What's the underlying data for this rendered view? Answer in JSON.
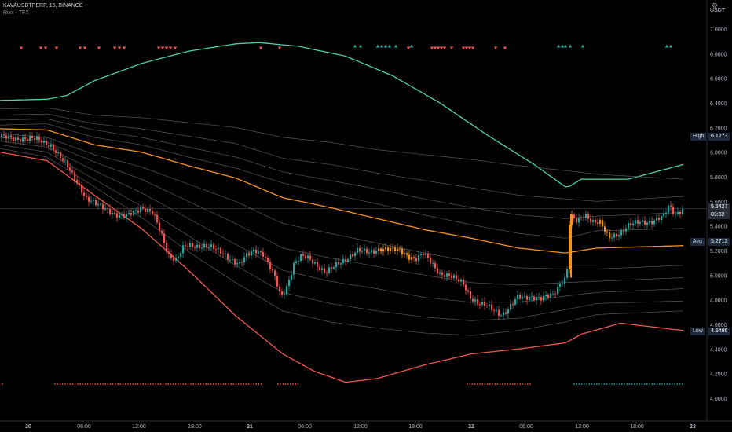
{
  "header": {
    "symbol_line": "KAVAUSDTPERP, 15, BINANCE",
    "indicator_line": "Rixx - TFX",
    "currency": "USDT"
  },
  "labels": {
    "high_name": "High",
    "high_value": "6.1273",
    "avg_name": "Avg",
    "avg_value": "5.2713",
    "low_name": "Low",
    "low_value": "4.5486",
    "last_value": "5.5427",
    "countdown": "03:02"
  },
  "colors": {
    "background": "#000000",
    "up": "#26a69a",
    "down": "#ef5350",
    "orange": "#f7931a",
    "band": "#5d606b",
    "teal": "#4dd0b0",
    "red_band": "#f05650"
  },
  "chart_data": {
    "type": "candlestick",
    "title": "KAVAUSDTPERP, 15, BINANCE",
    "x_ticks": [
      "20",
      "06:00",
      "12:00",
      "18:00",
      "21",
      "06:00",
      "12:00",
      "18:00",
      "22",
      "06:00",
      "12:00",
      "18:00",
      "23"
    ],
    "y_ticks": [
      "7.0000",
      "6.8000",
      "6.6000",
      "6.4000",
      "6.2000",
      "6.0000",
      "5.8000",
      "5.6000",
      "5.4000",
      "5.2000",
      "5.0000",
      "4.8000",
      "4.6000",
      "4.4000",
      "4.2000",
      "4.0000"
    ],
    "ylim": [
      3.9,
      7.1
    ],
    "price_path": [
      [
        0,
        6.12
      ],
      [
        30,
        6.11
      ],
      [
        50,
        6.1
      ],
      [
        65,
        6.06
      ],
      [
        75,
        5.97
      ],
      [
        90,
        5.85
      ],
      [
        100,
        5.75
      ],
      [
        110,
        5.62
      ],
      [
        120,
        5.58
      ],
      [
        135,
        5.55
      ],
      [
        150,
        5.48
      ],
      [
        160,
        5.47
      ],
      [
        170,
        5.52
      ],
      [
        180,
        5.55
      ],
      [
        195,
        5.5
      ],
      [
        205,
        5.35
      ],
      [
        215,
        5.17
      ],
      [
        225,
        5.12
      ],
      [
        235,
        5.23
      ],
      [
        245,
        5.24
      ],
      [
        260,
        5.24
      ],
      [
        270,
        5.22
      ],
      [
        285,
        5.18
      ],
      [
        295,
        5.13
      ],
      [
        305,
        5.08
      ],
      [
        315,
        5.16
      ],
      [
        325,
        5.21
      ],
      [
        335,
        5.18
      ],
      [
        345,
        5.05
      ],
      [
        352,
        4.95
      ],
      [
        358,
        4.82
      ],
      [
        365,
        4.9
      ],
      [
        375,
        5.1
      ],
      [
        385,
        5.15
      ],
      [
        395,
        5.13
      ],
      [
        405,
        5.08
      ],
      [
        415,
        5.02
      ],
      [
        425,
        5.06
      ],
      [
        440,
        5.13
      ],
      [
        455,
        5.2
      ],
      [
        470,
        5.18
      ],
      [
        485,
        5.22
      ],
      [
        500,
        5.2
      ],
      [
        510,
        5.2
      ],
      [
        520,
        5.16
      ],
      [
        530,
        5.13
      ],
      [
        540,
        5.17
      ],
      [
        550,
        5.1
      ],
      [
        560,
        5.02
      ],
      [
        575,
        4.98
      ],
      [
        590,
        4.94
      ],
      [
        600,
        4.82
      ],
      [
        610,
        4.76
      ],
      [
        620,
        4.75
      ],
      [
        630,
        4.72
      ],
      [
        640,
        4.68
      ],
      [
        648,
        4.72
      ],
      [
        660,
        4.82
      ],
      [
        675,
        4.83
      ],
      [
        690,
        4.8
      ],
      [
        705,
        4.85
      ],
      [
        715,
        4.95
      ],
      [
        722,
        4.98
      ],
      [
        726,
        5.48
      ],
      [
        735,
        5.43
      ],
      [
        745,
        5.5
      ],
      [
        755,
        5.44
      ],
      [
        765,
        5.42
      ],
      [
        775,
        5.3
      ],
      [
        790,
        5.35
      ],
      [
        800,
        5.4
      ],
      [
        815,
        5.43
      ],
      [
        830,
        5.44
      ],
      [
        845,
        5.47
      ],
      [
        852,
        5.56
      ],
      [
        860,
        5.5
      ],
      [
        870,
        5.54
      ]
    ],
    "series": [
      {
        "name": "",
        "color": "#4dd0b0",
        "points": [
          [
            0,
            6.42
          ],
          [
            60,
            6.43
          ],
          [
            85,
            6.46
          ],
          [
            120,
            6.58
          ],
          [
            180,
            6.72
          ],
          [
            240,
            6.82
          ],
          [
            300,
            6.88
          ],
          [
            330,
            6.89
          ],
          [
            380,
            6.86
          ],
          [
            440,
            6.78
          ],
          [
            500,
            6.62
          ],
          [
            560,
            6.4
          ],
          [
            620,
            6.14
          ],
          [
            680,
            5.9
          ],
          [
            715,
            5.74
          ],
          [
            722,
            5.71
          ],
          [
            740,
            5.78
          ],
          [
            800,
            5.78
          ],
          [
            870,
            5.9
          ]
        ]
      },
      {
        "name": "",
        "color": "#5d606b",
        "points": [
          [
            0,
            6.35
          ],
          [
            60,
            6.36
          ],
          [
            120,
            6.3
          ],
          [
            180,
            6.28
          ],
          [
            240,
            6.24
          ],
          [
            300,
            6.2
          ],
          [
            360,
            6.12
          ],
          [
            420,
            6.08
          ],
          [
            480,
            6.02
          ],
          [
            540,
            5.98
          ],
          [
            600,
            5.94
          ],
          [
            660,
            5.89
          ],
          [
            720,
            5.85
          ],
          [
            760,
            5.82
          ],
          [
            870,
            5.78
          ]
        ]
      },
      {
        "name": "",
        "color": "#5d606b",
        "points": [
          [
            0,
            6.3
          ],
          [
            60,
            6.31
          ],
          [
            120,
            6.23
          ],
          [
            180,
            6.19
          ],
          [
            240,
            6.13
          ],
          [
            300,
            6.07
          ],
          [
            360,
            5.95
          ],
          [
            420,
            5.9
          ],
          [
            480,
            5.83
          ],
          [
            540,
            5.77
          ],
          [
            600,
            5.71
          ],
          [
            660,
            5.65
          ],
          [
            720,
            5.62
          ],
          [
            760,
            5.6
          ],
          [
            870,
            5.64
          ]
        ]
      },
      {
        "name": "",
        "color": "#5d606b",
        "points": [
          [
            0,
            6.26
          ],
          [
            60,
            6.27
          ],
          [
            120,
            6.18
          ],
          [
            180,
            6.12
          ],
          [
            240,
            6.04
          ],
          [
            300,
            5.96
          ],
          [
            360,
            5.84
          ],
          [
            420,
            5.77
          ],
          [
            480,
            5.7
          ],
          [
            540,
            5.62
          ],
          [
            600,
            5.55
          ],
          [
            660,
            5.49
          ],
          [
            720,
            5.46
          ],
          [
            760,
            5.48
          ],
          [
            870,
            5.51
          ]
        ]
      },
      {
        "name": "",
        "color": "#5d606b",
        "points": [
          [
            0,
            6.22
          ],
          [
            60,
            6.23
          ],
          [
            120,
            6.12
          ],
          [
            180,
            6.06
          ],
          [
            240,
            5.96
          ],
          [
            300,
            5.87
          ],
          [
            360,
            5.75
          ],
          [
            420,
            5.66
          ],
          [
            480,
            5.58
          ],
          [
            540,
            5.49
          ],
          [
            600,
            5.41
          ],
          [
            660,
            5.34
          ],
          [
            720,
            5.3
          ],
          [
            760,
            5.36
          ],
          [
            870,
            5.38
          ]
        ]
      },
      {
        "name": "Avg",
        "color": "#f7931a",
        "points": [
          [
            0,
            6.19
          ],
          [
            60,
            6.18
          ],
          [
            120,
            6.06
          ],
          [
            180,
            6.0
          ],
          [
            240,
            5.89
          ],
          [
            300,
            5.79
          ],
          [
            360,
            5.63
          ],
          [
            420,
            5.55
          ],
          [
            480,
            5.46
          ],
          [
            540,
            5.37
          ],
          [
            600,
            5.3
          ],
          [
            660,
            5.22
          ],
          [
            720,
            5.18
          ],
          [
            760,
            5.22
          ],
          [
            870,
            5.24
          ]
        ]
      },
      {
        "name": "",
        "color": "#5d606b",
        "points": [
          [
            0,
            6.15
          ],
          [
            60,
            6.12
          ],
          [
            120,
            5.98
          ],
          [
            180,
            5.88
          ],
          [
            240,
            5.74
          ],
          [
            300,
            5.6
          ],
          [
            360,
            5.42
          ],
          [
            420,
            5.34
          ],
          [
            480,
            5.26
          ],
          [
            540,
            5.18
          ],
          [
            600,
            5.11
          ],
          [
            660,
            5.06
          ],
          [
            720,
            5.05
          ],
          [
            760,
            5.05
          ],
          [
            870,
            5.08
          ]
        ]
      },
      {
        "name": "",
        "color": "#5d606b",
        "points": [
          [
            0,
            6.12
          ],
          [
            60,
            6.08
          ],
          [
            120,
            5.92
          ],
          [
            180,
            5.78
          ],
          [
            240,
            5.6
          ],
          [
            300,
            5.42
          ],
          [
            360,
            5.22
          ],
          [
            420,
            5.14
          ],
          [
            480,
            5.07
          ],
          [
            540,
            5.0
          ],
          [
            600,
            4.94
          ],
          [
            660,
            4.92
          ],
          [
            720,
            4.94
          ],
          [
            760,
            4.95
          ],
          [
            870,
            4.98
          ]
        ]
      },
      {
        "name": "",
        "color": "#5d606b",
        "points": [
          [
            0,
            6.09
          ],
          [
            60,
            6.04
          ],
          [
            120,
            5.85
          ],
          [
            180,
            5.67
          ],
          [
            240,
            5.46
          ],
          [
            300,
            5.25
          ],
          [
            360,
            5.04
          ],
          [
            420,
            4.95
          ],
          [
            480,
            4.89
          ],
          [
            540,
            4.82
          ],
          [
            600,
            4.78
          ],
          [
            660,
            4.78
          ],
          [
            720,
            4.83
          ],
          [
            760,
            4.86
          ],
          [
            870,
            4.89
          ]
        ]
      },
      {
        "name": "",
        "color": "#5d606b",
        "points": [
          [
            0,
            6.06
          ],
          [
            60,
            6.0
          ],
          [
            120,
            5.78
          ],
          [
            180,
            5.56
          ],
          [
            240,
            5.32
          ],
          [
            300,
            5.08
          ],
          [
            360,
            4.86
          ],
          [
            420,
            4.77
          ],
          [
            480,
            4.71
          ],
          [
            540,
            4.66
          ],
          [
            600,
            4.63
          ],
          [
            660,
            4.65
          ],
          [
            720,
            4.72
          ],
          [
            760,
            4.77
          ],
          [
            870,
            4.79
          ]
        ]
      },
      {
        "name": "",
        "color": "#5d606b",
        "points": [
          [
            0,
            6.03
          ],
          [
            60,
            5.96
          ],
          [
            120,
            5.72
          ],
          [
            180,
            5.47
          ],
          [
            240,
            5.19
          ],
          [
            300,
            4.94
          ],
          [
            360,
            4.71
          ],
          [
            420,
            4.62
          ],
          [
            480,
            4.57
          ],
          [
            540,
            4.53
          ],
          [
            600,
            4.51
          ],
          [
            660,
            4.55
          ],
          [
            720,
            4.62
          ],
          [
            760,
            4.68
          ],
          [
            870,
            4.71
          ]
        ]
      },
      {
        "name": "",
        "color": "#f05650",
        "points": [
          [
            0,
            6.0
          ],
          [
            60,
            5.93
          ],
          [
            120,
            5.65
          ],
          [
            180,
            5.38
          ],
          [
            240,
            5.04
          ],
          [
            300,
            4.67
          ],
          [
            360,
            4.36
          ],
          [
            400,
            4.22
          ],
          [
            440,
            4.13
          ],
          [
            480,
            4.16
          ],
          [
            540,
            4.27
          ],
          [
            600,
            4.36
          ],
          [
            660,
            4.4
          ],
          [
            720,
            4.45
          ],
          [
            740,
            4.52
          ],
          [
            790,
            4.61
          ],
          [
            870,
            4.55
          ]
        ]
      }
    ],
    "buy_markers_x": [
      452,
      459,
      481,
      486,
      491,
      496,
      504,
      524,
      711,
      716,
      720,
      726,
      742,
      849,
      854
    ],
    "sell_markers_x": [
      27,
      52,
      58,
      72,
      102,
      108,
      126,
      146,
      152,
      158,
      202,
      207,
      212,
      217,
      223,
      332,
      356,
      520,
      550,
      554,
      558,
      562,
      566,
      575,
      590,
      594,
      598,
      602,
      631,
      643
    ],
    "bottom_dot_rows": [
      {
        "color": "#ef5350",
        "x_from": 70,
        "x_to": 334
      },
      {
        "color": "#ef5350",
        "x_from": 354,
        "x_to": 382
      },
      {
        "color": "#ef5350",
        "x_from": 595,
        "x_to": 676
      },
      {
        "color": "#26a69a",
        "x_from": 731,
        "x_to": 870
      }
    ]
  }
}
